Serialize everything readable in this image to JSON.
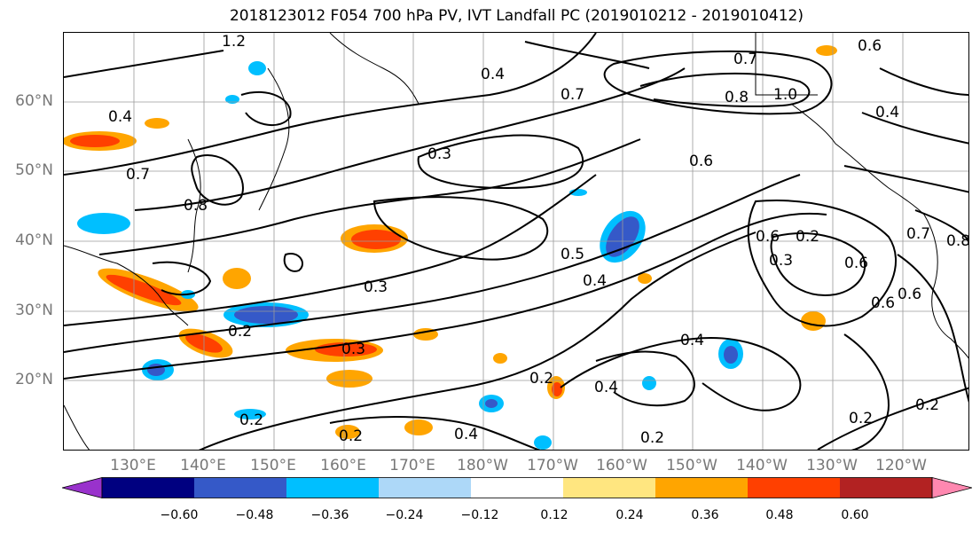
{
  "title": "2018123012 F054 700 hPa PV, IVT Landfall PC (2019010212 - 2019010412)",
  "map": {
    "lat_labels": [
      "60°N",
      "50°N",
      "40°N",
      "30°N",
      "20°N"
    ],
    "lon_labels": [
      "130°E",
      "140°E",
      "150°E",
      "160°E",
      "170°E",
      "180°W",
      "170°W",
      "160°W",
      "150°W",
      "140°W",
      "130°W",
      "120°W"
    ],
    "contour_labels": [
      "1.2",
      "0.6",
      "0.4",
      "0.7",
      "0.8",
      "0.4",
      "0.3",
      "0.5",
      "0.4",
      "0.3",
      "0.3",
      "0.2",
      "0.2",
      "0.2",
      "0.4",
      "0.4",
      "0.2",
      "0.2",
      "0.6",
      "0.7",
      "1.0",
      "0.8",
      "0.6",
      "0.4",
      "0.6",
      "0.7",
      "0.2",
      "0.6",
      "0.6",
      "0.2",
      "0.2",
      "0.4",
      "0.3",
      "0.7",
      "0.8"
    ],
    "colors": {
      "coast": "#000000",
      "grid": "#9a9a9a",
      "contour": "#000000",
      "axis_label": "#777777"
    }
  },
  "colorbar": {
    "tick_labels": [
      "−0.60",
      "−0.48",
      "−0.36",
      "−0.24",
      "−0.12",
      "0.12",
      "0.24",
      "0.36",
      "0.48",
      "0.60"
    ],
    "colors": [
      "#9932cc",
      "#000080",
      "#3559c8",
      "#00bfff",
      "#add8f8",
      "#ffffff",
      "#ffe680",
      "#ffa500",
      "#ff4000",
      "#b22222",
      "#ff88b0"
    ]
  }
}
